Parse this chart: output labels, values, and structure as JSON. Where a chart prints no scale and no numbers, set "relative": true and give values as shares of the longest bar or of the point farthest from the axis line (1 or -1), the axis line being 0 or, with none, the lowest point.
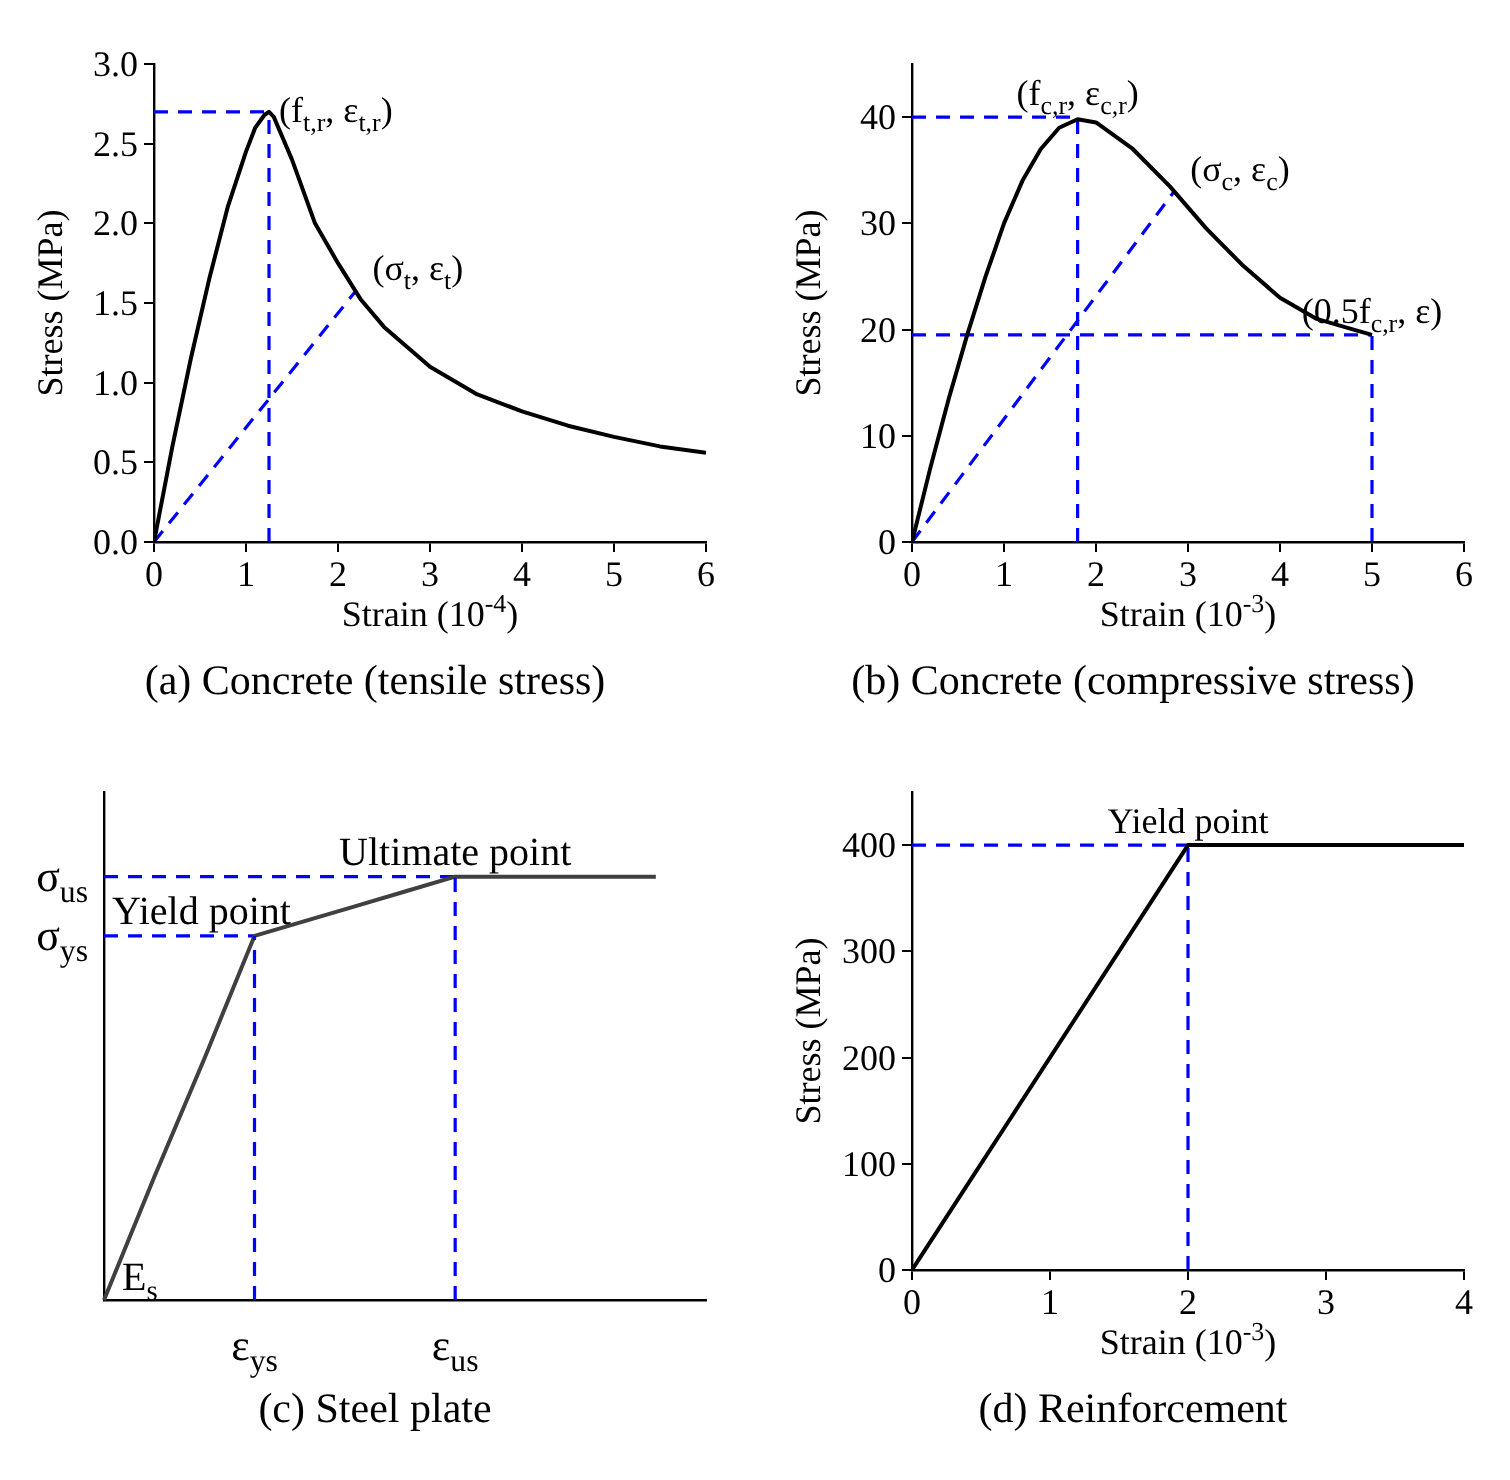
{
  "chart_data": [
    {
      "type": "line",
      "title": "(a) Concrete (tensile stress)",
      "xlabel": "Strain (10$^{-4}$)",
      "ylabel": "Stress (MPa)",
      "marker": "none",
      "xlim": [
        0,
        6
      ],
      "xticks": [
        0,
        1,
        2,
        3,
        4,
        5,
        6
      ],
      "ylim": [
        0,
        3.0
      ],
      "yticks": [
        {
          "value": 0,
          "label": "0.0"
        },
        0.5,
        {
          "value": 1,
          "label": "1.0"
        },
        1.5,
        {
          "value": 2,
          "label": "2.0"
        },
        2.5,
        {
          "value": 3,
          "label": "3.0"
        }
      ],
      "series": [
        {
          "type": "line",
          "color": "#000000",
          "line_style": "solid",
          "x": [
            0,
            0.2,
            0.4,
            0.6,
            0.8,
            1.0,
            1.1,
            1.2,
            1.25,
            1.3,
            1.5,
            1.75,
            2,
            2.25,
            2.5,
            3,
            3.5,
            4,
            4.5,
            5,
            5.5,
            6
          ],
          "values": [
            0,
            0.6,
            1.15,
            1.65,
            2.1,
            2.45,
            2.6,
            2.68,
            2.7,
            2.67,
            2.4,
            2.0,
            1.75,
            1.52,
            1.35,
            1.1,
            0.93,
            0.82,
            0.73,
            0.66,
            0.6,
            0.56
          ]
        },
        {
          "type": "line",
          "color": "#0000ff",
          "line_style": "dashed",
          "x": [
            0,
            1.25
          ],
          "values": [
            2.7,
            2.7
          ]
        },
        {
          "type": "line",
          "color": "#0000ff",
          "line_style": "dashed",
          "x": [
            1.25,
            1.25
          ],
          "values": [
            0,
            2.7
          ]
        },
        {
          "type": "line",
          "color": "#0000ff",
          "line_style": "dashed",
          "x": [
            0,
            2.2
          ],
          "values": [
            0,
            1.58
          ]
        }
      ],
      "annotations": [
        {
          "text": "(f$_{t,r}$, ε$_{t,r}$)",
          "x": 1.25,
          "y": 2.7
        },
        {
          "text": "(σ$_{t}$, ε$_{t}$)",
          "x": 2.2,
          "y": 1.58
        }
      ]
    },
    {
      "type": "line",
      "title": "(b) Concrete (compressive stress)",
      "xlabel": "Strain (10$^{-3}$)",
      "ylabel": "Stress (MPa)",
      "marker": "none",
      "xlim": [
        0,
        6
      ],
      "xticks": [
        0,
        1,
        2,
        3,
        4,
        5,
        6
      ],
      "ylim": [
        0,
        45
      ],
      "yticks": [
        0,
        10,
        20,
        30,
        40
      ],
      "series": [
        {
          "type": "line",
          "color": "#000000",
          "line_style": "solid",
          "x": [
            0,
            0.2,
            0.4,
            0.6,
            0.8,
            1.0,
            1.2,
            1.4,
            1.6,
            1.8,
            2.0,
            2.4,
            2.8,
            3.2,
            3.6,
            4.0,
            4.4,
            4.8,
            5.0
          ],
          "values": [
            0,
            7,
            13.5,
            19.5,
            25,
            30,
            34,
            37,
            39,
            39.8,
            39.5,
            37,
            33.5,
            29.5,
            26,
            23,
            21,
            20,
            19.5
          ]
        },
        {
          "type": "line",
          "color": "#0000ff",
          "line_style": "dashed",
          "x": [
            0,
            1.8
          ],
          "values": [
            40,
            40
          ]
        },
        {
          "type": "line",
          "color": "#0000ff",
          "line_style": "dashed",
          "x": [
            1.8,
            1.8
          ],
          "values": [
            0,
            40
          ]
        },
        {
          "type": "line",
          "color": "#0000ff",
          "line_style": "dashed",
          "x": [
            0,
            5
          ],
          "values": [
            19.5,
            19.5
          ]
        },
        {
          "type": "line",
          "color": "#0000ff",
          "line_style": "dashed",
          "x": [
            5,
            5
          ],
          "values": [
            0,
            19.5
          ]
        },
        {
          "type": "line",
          "color": "#0000ff",
          "line_style": "dashed",
          "x": [
            0,
            2.85
          ],
          "values": [
            0,
            33
          ]
        }
      ],
      "annotations": [
        {
          "text": "(f$_{c,r}$, ε$_{c,r}$)",
          "x": 1.8,
          "y": 40
        },
        {
          "text": "(σ$_{c}$, ε$_{c}$)",
          "x": 2.85,
          "y": 33
        },
        {
          "text": "(0.5f$_{c,r}$, ε)",
          "x": 5,
          "y": 19.5
        }
      ]
    },
    {
      "type": "line",
      "title": "(c) Steel plate",
      "relative": true,
      "marker": "none",
      "categories": [
        null,
        null,
        null,
        "ε$_{ys}$",
        null,
        null,
        null,
        "ε$_{us}$",
        null,
        null,
        null,
        null,
        null
      ],
      "series": [
        {
          "type": "line",
          "color": "#404040",
          "line_style": "solid",
          "values": [
            0,
            0.29,
            0.57,
            0.86,
            0.895,
            0.93,
            0.965,
            1,
            1,
            1,
            1,
            1,
            null
          ]
        },
        {
          "type": "line",
          "color": "#0000ff",
          "line_style": "dashed",
          "values": [
            1,
            1,
            1,
            1,
            1,
            1,
            1,
            1,
            null,
            null,
            null,
            null,
            null
          ]
        },
        {
          "type": "line",
          "color": "#0000ff",
          "line_style": "dashed",
          "values": [
            0.86,
            0.86,
            0.86,
            0.86,
            null,
            null,
            null,
            null,
            null,
            null,
            null,
            null,
            null
          ]
        }
      ],
      "ref_lines": [
        {
          "axis": "x",
          "value": "ε$_{ys}$",
          "color": "#0000ff",
          "line_style": "dashed"
        },
        {
          "axis": "x",
          "value": "ε$_{us}$",
          "color": "#0000ff",
          "line_style": "dashed"
        }
      ],
      "annotations": [
        {
          "text": "Ultimate point",
          "x": "ε$_{us}$",
          "y": 1
        },
        {
          "text": "Yield point",
          "x": "ε$_{ys}$",
          "y": 0.86
        },
        "E$_{s}$",
        "σ$_{us}$",
        "σ$_{ys}$"
      ]
    },
    {
      "type": "line",
      "title": "(d) Reinforcement",
      "xlabel": "Strain (10$^{-3}$)",
      "ylabel": "Stress (MPa)",
      "marker": "none",
      "xlim": [
        0,
        4
      ],
      "xticks": [
        0,
        1,
        2,
        3,
        4
      ],
      "ylim": [
        0,
        450
      ],
      "yticks": [
        0,
        100,
        200,
        300,
        400
      ],
      "series": [
        {
          "type": "line",
          "color": "#000000",
          "line_style": "solid",
          "x": [
            0,
            2,
            4
          ],
          "values": [
            0,
            400,
            400
          ]
        },
        {
          "type": "line",
          "color": "#0000ff",
          "line_style": "dashed",
          "x": [
            0,
            2
          ],
          "values": [
            400,
            400
          ]
        },
        {
          "type": "line",
          "color": "#0000ff",
          "line_style": "dashed",
          "x": [
            2,
            2
          ],
          "values": [
            0,
            400
          ]
        }
      ],
      "annotations": [
        {
          "text": "Yield point",
          "x": 2,
          "y": 400
        }
      ]
    }
  ]
}
